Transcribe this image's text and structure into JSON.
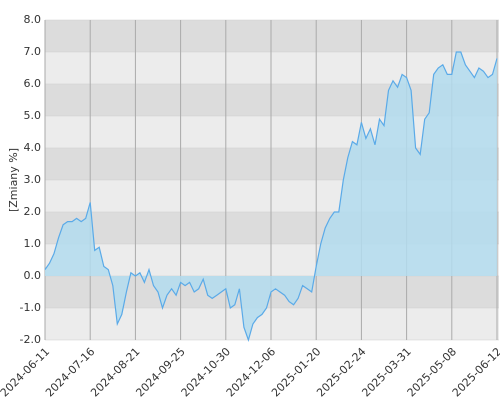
{
  "chart_data": {
    "type": "area",
    "y_label": "[Zmiany %]",
    "categories": [
      "2024-06-11",
      null,
      null,
      null,
      null,
      null,
      null,
      null,
      null,
      null,
      "2024-07-16",
      null,
      null,
      null,
      null,
      null,
      null,
      null,
      null,
      null,
      "2024-08-21",
      null,
      null,
      null,
      null,
      null,
      null,
      null,
      null,
      null,
      "2024-09-25",
      null,
      null,
      null,
      null,
      null,
      null,
      null,
      null,
      null,
      "2024-10-30",
      null,
      null,
      null,
      null,
      null,
      null,
      null,
      null,
      null,
      "2024-12-06",
      null,
      null,
      null,
      null,
      null,
      null,
      null,
      null,
      null,
      "2025-01-20",
      null,
      null,
      null,
      null,
      null,
      null,
      null,
      null,
      null,
      "2025-02-24",
      null,
      null,
      null,
      null,
      null,
      null,
      null,
      null,
      null,
      "2025-03-31",
      null,
      null,
      null,
      null,
      null,
      null,
      null,
      null,
      null,
      "2025-05-08",
      null,
      null,
      null,
      null,
      null,
      null,
      null,
      null,
      null,
      "2025-06-12"
    ],
    "values": [
      0.2,
      0.4,
      0.7,
      1.2,
      1.6,
      1.7,
      1.7,
      1.8,
      1.7,
      1.8,
      2.3,
      0.8,
      0.9,
      0.3,
      0.2,
      -0.3,
      -1.5,
      -1.2,
      -0.5,
      0.1,
      0.0,
      0.1,
      -0.2,
      0.2,
      -0.3,
      -0.5,
      -1.0,
      -0.6,
      -0.4,
      -0.6,
      -0.2,
      -0.3,
      -0.2,
      -0.5,
      -0.4,
      -0.1,
      -0.6,
      -0.7,
      -0.6,
      -0.5,
      -0.4,
      -1.0,
      -0.9,
      -0.4,
      -1.6,
      -2.0,
      -1.5,
      -1.3,
      -1.2,
      -1.0,
      -0.5,
      -0.4,
      -0.5,
      -0.6,
      -0.8,
      -0.9,
      -0.7,
      -0.3,
      -0.4,
      -0.5,
      0.3,
      1.0,
      1.5,
      1.8,
      2.0,
      2.0,
      3.0,
      3.7,
      4.2,
      4.1,
      4.8,
      4.3,
      4.6,
      4.1,
      4.9,
      4.7,
      5.8,
      6.1,
      5.9,
      6.3,
      6.2,
      5.8,
      4.0,
      3.8,
      4.9,
      5.1,
      6.3,
      6.5,
      6.6,
      6.3,
      6.3,
      7.0,
      7.0,
      6.6,
      6.4,
      6.2,
      6.5,
      6.4,
      6.2,
      6.3,
      6.8
    ],
    "color": "#5aaae8",
    "fill_color": "#b3dcef",
    "ylim": [
      -2,
      8
    ],
    "yticks": [
      {
        "value": -2,
        "label": "-2.0"
      },
      {
        "value": -1,
        "label": "-1.0"
      },
      {
        "value": 0,
        "label": "0.0"
      },
      {
        "value": 1,
        "label": "1.0"
      },
      {
        "value": 2,
        "label": "2.0"
      },
      {
        "value": 3,
        "label": "3.0"
      },
      {
        "value": 4,
        "label": "4.0"
      },
      {
        "value": 5,
        "label": "5.0"
      },
      {
        "value": 6,
        "label": "6.0"
      },
      {
        "value": 7,
        "label": "7.0"
      },
      {
        "value": 8,
        "label": "8.0"
      }
    ],
    "grid": true
  }
}
